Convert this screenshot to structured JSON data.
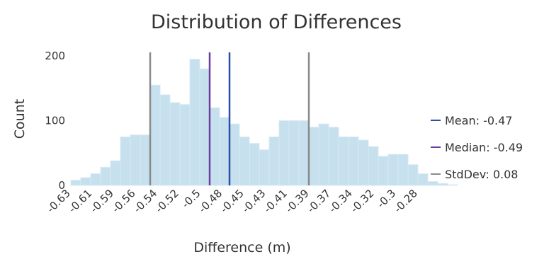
{
  "chart_data": {
    "type": "bar",
    "title": "Distribution of Differences",
    "xlabel": "Difference (m)",
    "ylabel": "Count",
    "x_tick_labels": [
      "-0.63",
      "-0.61",
      "-0.59",
      "-0.56",
      "-0.54",
      "-0.52",
      "-0.5",
      "-0.48",
      "-0.45",
      "-0.43",
      "-0.41",
      "-0.39",
      "-0.37",
      "-0.34",
      "-0.32",
      "-0.3",
      "-0.28"
    ],
    "y_ticks": [
      0,
      100,
      200
    ],
    "ylim": [
      0,
      210
    ],
    "xlim": [
      -0.63,
      -0.28
    ],
    "bins": {
      "start": -0.63,
      "width": 0.01,
      "counts": [
        8,
        12,
        18,
        28,
        38,
        75,
        78,
        78,
        155,
        140,
        128,
        125,
        195,
        180,
        120,
        105,
        95,
        75,
        65,
        55,
        75,
        100,
        100,
        100,
        90,
        95,
        90,
        75,
        75,
        70,
        60,
        45,
        48,
        48,
        32,
        18,
        6,
        3,
        1,
        0,
        0
      ]
    },
    "reference_lines": [
      {
        "name": "Mean",
        "label": "Mean: -0.47",
        "x": -0.47,
        "color": "#2a4fa8"
      },
      {
        "name": "Median",
        "label": "Median: -0.49",
        "x": -0.49,
        "color": "#6a3fa0"
      },
      {
        "name": "StdDev",
        "label": "StdDev: 0.08",
        "x_values": [
          -0.55,
          -0.39
        ],
        "color": "#8a8a8a"
      }
    ],
    "legend_position": "right",
    "grid": false
  }
}
